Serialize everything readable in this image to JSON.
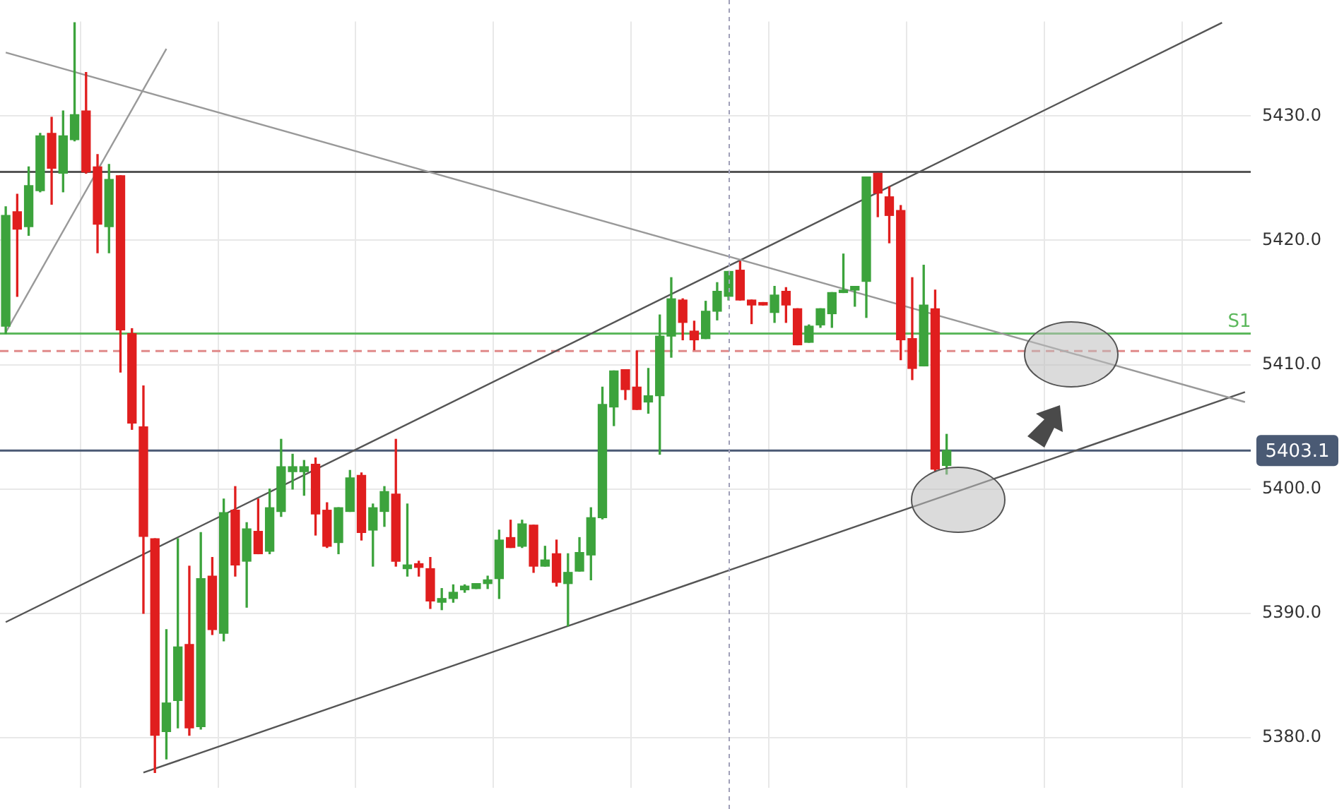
{
  "chart_data": {
    "type": "candlestick",
    "categories": [
      null,
      null,
      null,
      null,
      null,
      null,
      null,
      null,
      null,
      null,
      null,
      null,
      null,
      null,
      null,
      null,
      null,
      null,
      null,
      null,
      null,
      null,
      null,
      null,
      null,
      null,
      null,
      null,
      null,
      null,
      null,
      null,
      null,
      null,
      null,
      null,
      null,
      null,
      null,
      null,
      null,
      null,
      null,
      null,
      null,
      null,
      null,
      null,
      null,
      null,
      null,
      null,
      null,
      null,
      null,
      null,
      null,
      null,
      null,
      null,
      null,
      null,
      null,
      null,
      null,
      null,
      null,
      null,
      null,
      null,
      null,
      null,
      null,
      null,
      null,
      null,
      null,
      null,
      null,
      null,
      null,
      null,
      null,
      null,
      null,
      null,
      null,
      null,
      null,
      null,
      null,
      null,
      null,
      null,
      null,
      null,
      null,
      null,
      null,
      null,
      null,
      null,
      null,
      null,
      null,
      null,
      null,
      null,
      null
    ],
    "ohlc": [
      [
        5413.1,
        5422.7,
        5412.5,
        5422.0
      ],
      [
        5422.3,
        5423.7,
        5415.5,
        5420.9
      ],
      [
        5421.1,
        5425.9,
        5420.4,
        5424.4
      ],
      [
        5424.0,
        5428.6,
        5423.9,
        5428.4
      ],
      [
        5428.6,
        5429.9,
        5422.9,
        5425.8
      ],
      [
        5425.4,
        5430.4,
        5423.9,
        5428.4
      ],
      [
        5428.1,
        5437.5,
        5428.0,
        5430.1
      ],
      [
        5430.4,
        5433.5,
        5425.4,
        5425.5
      ],
      [
        5425.9,
        5426.9,
        5419.0,
        5421.3
      ],
      [
        5421.1,
        5426.1,
        5419.0,
        5424.9
      ],
      [
        5425.2,
        5425.2,
        5409.4,
        5412.8
      ],
      [
        5412.5,
        5412.9,
        5404.8,
        5405.3
      ],
      [
        5405.0,
        5408.3,
        5390.0,
        5396.2
      ],
      [
        5396.0,
        5396.0,
        5377.2,
        5380.2
      ],
      [
        5380.5,
        5388.7,
        5378.3,
        5382.8
      ],
      [
        5383.0,
        5396.0,
        5380.8,
        5387.3
      ],
      [
        5387.5,
        5393.8,
        5380.2,
        5380.8
      ],
      [
        5380.9,
        5396.5,
        5380.7,
        5392.8
      ],
      [
        5393.0,
        5394.5,
        5388.3,
        5388.7
      ],
      [
        5388.4,
        5399.2,
        5387.8,
        5398.1
      ],
      [
        5398.3,
        5400.2,
        5393.0,
        5393.9
      ],
      [
        5394.2,
        5397.3,
        5390.5,
        5396.8
      ],
      [
        5396.6,
        5399.2,
        5394.8,
        5394.8
      ],
      [
        5395.0,
        5400.0,
        5394.8,
        5398.5
      ],
      [
        5398.2,
        5404.0,
        5397.8,
        5401.8
      ],
      [
        5401.4,
        5402.8,
        5400.0,
        5401.8
      ],
      [
        5401.4,
        5402.3,
        5399.5,
        5401.8
      ],
      [
        5402.0,
        5402.5,
        5396.3,
        5398.0
      ],
      [
        5398.3,
        5398.9,
        5395.3,
        5395.4
      ],
      [
        5395.7,
        5398.5,
        5394.8,
        5398.5
      ],
      [
        5398.2,
        5401.5,
        5398.2,
        5400.9
      ],
      [
        5401.1,
        5401.3,
        5395.9,
        5396.5
      ],
      [
        5396.7,
        5398.8,
        5393.8,
        5398.5
      ],
      [
        5398.2,
        5400.2,
        5397.0,
        5399.8
      ],
      [
        5399.6,
        5404.0,
        5393.8,
        5394.2
      ],
      [
        5393.6,
        5398.8,
        5393.0,
        5393.9
      ],
      [
        5394.0,
        5394.2,
        5393.0,
        5393.7
      ],
      [
        5393.6,
        5394.5,
        5390.4,
        5391.0
      ],
      [
        5390.9,
        5392.0,
        5390.3,
        5391.2
      ],
      [
        5391.2,
        5392.3,
        5390.9,
        5391.7
      ],
      [
        5391.9,
        5392.3,
        5391.7,
        5392.2
      ],
      [
        5392.0,
        5392.4,
        5392.0,
        5392.4
      ],
      [
        5392.4,
        5393.0,
        5392.0,
        5392.7
      ],
      [
        5392.8,
        5396.7,
        5391.2,
        5395.9
      ],
      [
        5396.1,
        5397.5,
        5395.3,
        5395.3
      ],
      [
        5395.4,
        5397.5,
        5395.3,
        5397.2
      ],
      [
        5397.1,
        5397.1,
        5393.3,
        5393.8
      ],
      [
        5393.8,
        5395.4,
        5393.8,
        5394.3
      ],
      [
        5394.8,
        5395.9,
        5392.2,
        5392.5
      ],
      [
        5392.4,
        5394.8,
        5389.0,
        5393.3
      ],
      [
        5393.4,
        5396.1,
        5393.4,
        5394.9
      ],
      [
        5394.7,
        5398.5,
        5392.7,
        5397.7
      ],
      [
        5397.7,
        5408.2,
        5397.6,
        5406.8
      ],
      [
        5406.6,
        5409.5,
        5405.1,
        5409.5
      ],
      [
        5409.6,
        5409.6,
        5407.2,
        5408.0
      ],
      [
        5408.2,
        5411.1,
        5406.4,
        5406.4
      ],
      [
        5407.0,
        5409.7,
        5406.1,
        5407.5
      ],
      [
        5407.5,
        5414.0,
        5402.8,
        5412.3
      ],
      [
        5412.3,
        5417.0,
        5410.6,
        5415.3
      ],
      [
        5415.2,
        5415.3,
        5412.0,
        5413.4
      ],
      [
        5412.7,
        5413.5,
        5411.2,
        5412.0
      ],
      [
        5412.1,
        5415.1,
        5412.1,
        5414.3
      ],
      [
        5414.3,
        5416.6,
        5413.6,
        5415.9
      ],
      [
        5415.5,
        5417.5,
        5415.2,
        5417.5
      ],
      [
        5417.6,
        5418.3,
        5415.2,
        5415.2
      ],
      [
        5415.2,
        5415.2,
        5413.3,
        5414.8
      ],
      [
        5415.0,
        5415.0,
        5414.8,
        5414.8
      ],
      [
        5414.2,
        5416.3,
        5413.4,
        5415.6
      ],
      [
        5415.9,
        5416.2,
        5413.4,
        5414.8
      ],
      [
        5414.5,
        5414.5,
        5411.6,
        5411.6
      ],
      [
        5411.8,
        5413.2,
        5411.8,
        5413.1
      ],
      [
        5413.2,
        5414.5,
        5413.0,
        5414.5
      ],
      [
        5414.1,
        5415.8,
        5413.0,
        5415.8
      ],
      [
        5415.8,
        5418.9,
        5415.8,
        5416.0
      ],
      [
        5416.0,
        5416.3,
        5414.7,
        5416.3
      ],
      [
        5416.7,
        5425.1,
        5413.8,
        5425.1
      ],
      [
        5425.4,
        5425.4,
        5421.9,
        5423.8
      ],
      [
        5423.5,
        5424.3,
        5419.8,
        5422.0
      ],
      [
        5422.4,
        5422.8,
        5410.4,
        5412.0
      ],
      [
        5412.1,
        5417.0,
        5408.8,
        5409.7
      ],
      [
        5409.9,
        5418.0,
        5409.9,
        5414.8
      ],
      [
        5414.5,
        5416.0,
        5401.4,
        5401.6
      ],
      [
        5401.9,
        5404.4,
        5401.2,
        5403.1
      ],
      null,
      null,
      null,
      null,
      null,
      null,
      null,
      null,
      null,
      null,
      null,
      null,
      null,
      null,
      null,
      null,
      null,
      null,
      null,
      null,
      null,
      null,
      null,
      null,
      null,
      null
    ],
    "colors": [
      "#3ca33c",
      "#e01e1e",
      "#3ca33c",
      "#3ca33c",
      "#e01e1e",
      "#3ca33c",
      "#3ca33c",
      "#e01e1e",
      "#e01e1e",
      "#3ca33c",
      "#e01e1e",
      "#e01e1e",
      "#e01e1e",
      "#e01e1e",
      "#3ca33c",
      "#3ca33c",
      "#e01e1e",
      "#3ca33c",
      "#e01e1e",
      "#3ca33c",
      "#e01e1e",
      "#3ca33c",
      "#e01e1e",
      "#3ca33c",
      "#3ca33c",
      "#3ca33c",
      "#3ca33c",
      "#e01e1e",
      "#e01e1e",
      "#3ca33c",
      "#3ca33c",
      "#e01e1e",
      "#3ca33c",
      "#3ca33c",
      "#e01e1e",
      "#3ca33c",
      "#e01e1e",
      "#e01e1e",
      "#3ca33c",
      "#3ca33c",
      "#3ca33c",
      "#3ca33c",
      "#3ca33c",
      "#3ca33c",
      "#e01e1e",
      "#3ca33c",
      "#e01e1e",
      "#3ca33c",
      "#e01e1e",
      "#3ca33c",
      "#3ca33c",
      "#3ca33c",
      "#3ca33c",
      "#3ca33c",
      "#e01e1e",
      "#e01e1e",
      "#3ca33c",
      "#3ca33c",
      "#3ca33c",
      "#e01e1e",
      "#e01e1e",
      "#3ca33c",
      "#3ca33c",
      "#3ca33c",
      "#e01e1e",
      "#e01e1e",
      "#e01e1e",
      "#3ca33c",
      "#e01e1e",
      "#e01e1e",
      "#3ca33c",
      "#3ca33c",
      "#3ca33c",
      "#3ca33c",
      "#3ca33c",
      "#3ca33c",
      "#e01e1e",
      "#e01e1e",
      "#e01e1e",
      "#e01e1e",
      "#3ca33c",
      "#e01e1e",
      "#3ca33c",
      null,
      null,
      null,
      null,
      null,
      null,
      null,
      null,
      null,
      null,
      null,
      null,
      null,
      null,
      null,
      null,
      null,
      null,
      null,
      null,
      null,
      null,
      null,
      null,
      null,
      null
    ],
    "ylim": [
      5376.0,
      5437.6
    ],
    "yticks": [
      {
        "value": 5380,
        "label": "5380.0"
      },
      {
        "value": 5390,
        "label": "5390.0"
      },
      {
        "value": 5400,
        "label": "5400.0"
      },
      {
        "value": 5410,
        "label": "5410.0"
      },
      {
        "value": 5420,
        "label": "5420.0"
      },
      {
        "value": 5430,
        "label": "5430.0"
      }
    ],
    "ref_lines": [
      {
        "axis": "y",
        "value": 5425.5,
        "color": "#555555"
      },
      {
        "axis": "y",
        "value": 5412.5,
        "label": "S1",
        "color": "#5cb85c"
      },
      {
        "axis": "y",
        "value": 5411.1,
        "color": "#e08a8a",
        "line_style": "dashed"
      },
      {
        "axis": "y",
        "value": 5403.1,
        "label": "5403.1",
        "color": "#4a5a74"
      }
    ],
    "series": [
      {
        "type": "line",
        "color": "#999999",
        "values": [
          5412.6,
          null,
          null,
          null,
          null,
          null,
          null,
          null,
          null,
          null,
          null,
          null,
          null,
          null,
          5435.4,
          null,
          null,
          null,
          null,
          null,
          null,
          null,
          null,
          null,
          null,
          null,
          null,
          null,
          null,
          null,
          null,
          null,
          null,
          null,
          null,
          null,
          null,
          null,
          null,
          null,
          null,
          null,
          null,
          null,
          null,
          null,
          null,
          null,
          null,
          null,
          null,
          null,
          null,
          null,
          null,
          null,
          null,
          null,
          null,
          null,
          null,
          null,
          null,
          null,
          null,
          null,
          null,
          null,
          null,
          null,
          null,
          null,
          null,
          null,
          null,
          null,
          null,
          null,
          null,
          null,
          null,
          null,
          null,
          null,
          null,
          null,
          null,
          null,
          null,
          null,
          null,
          null,
          null,
          null,
          null,
          null,
          null,
          null,
          null,
          null,
          null,
          null,
          null,
          null,
          null,
          null,
          null,
          null,
          null
        ]
      },
      {
        "type": "line",
        "color": "#999999",
        "values": [
          5435.1,
          null,
          null,
          null,
          null,
          null,
          null,
          null,
          null,
          null,
          null,
          null,
          null,
          null,
          null,
          null,
          null,
          null,
          null,
          null,
          null,
          null,
          null,
          null,
          null,
          null,
          null,
          null,
          null,
          null,
          null,
          null,
          null,
          null,
          null,
          null,
          null,
          null,
          null,
          null,
          null,
          null,
          null,
          null,
          null,
          null,
          null,
          null,
          null,
          null,
          null,
          null,
          null,
          null,
          null,
          null,
          null,
          null,
          null,
          null,
          null,
          null,
          null,
          null,
          null,
          null,
          null,
          null,
          null,
          null,
          null,
          null,
          null,
          null,
          null,
          null,
          null,
          null,
          null,
          null,
          null,
          null,
          null,
          null,
          null,
          null,
          null,
          null,
          null,
          null,
          null,
          null,
          null,
          null,
          null,
          null,
          null,
          null,
          null,
          null,
          null,
          null,
          null,
          null,
          null,
          null,
          null,
          null,
          5407.0
        ]
      },
      {
        "type": "line",
        "color": "#555555",
        "values": [
          5389.3,
          null,
          null,
          null,
          null,
          null,
          null,
          null,
          null,
          null,
          null,
          null,
          null,
          null,
          null,
          null,
          null,
          null,
          null,
          null,
          null,
          null,
          null,
          null,
          null,
          null,
          null,
          null,
          null,
          null,
          null,
          null,
          null,
          null,
          null,
          null,
          null,
          null,
          null,
          null,
          null,
          null,
          null,
          null,
          null,
          null,
          null,
          null,
          null,
          null,
          null,
          null,
          null,
          null,
          null,
          null,
          null,
          null,
          null,
          null,
          null,
          null,
          null,
          null,
          null,
          null,
          null,
          null,
          null,
          null,
          null,
          null,
          null,
          null,
          null,
          null,
          null,
          null,
          null,
          null,
          null,
          null,
          null,
          null,
          null,
          null,
          null,
          null,
          null,
          null,
          null,
          null,
          null,
          null,
          null,
          null,
          null,
          null,
          null,
          null,
          null,
          null,
          null,
          null,
          null,
          null,
          5437.5,
          null,
          null
        ]
      },
      {
        "type": "line",
        "color": "#555555",
        "values": [
          null,
          null,
          null,
          null,
          null,
          null,
          null,
          null,
          null,
          null,
          null,
          null,
          5377.2,
          null,
          null,
          null,
          null,
          null,
          null,
          null,
          null,
          null,
          null,
          null,
          null,
          null,
          null,
          null,
          null,
          null,
          null,
          null,
          null,
          null,
          null,
          null,
          null,
          null,
          null,
          null,
          null,
          null,
          null,
          null,
          null,
          null,
          null,
          null,
          null,
          null,
          null,
          null,
          null,
          null,
          null,
          null,
          null,
          null,
          null,
          null,
          null,
          null,
          null,
          null,
          null,
          null,
          null,
          null,
          null,
          null,
          null,
          null,
          null,
          null,
          null,
          null,
          null,
          null,
          null,
          null,
          null,
          null,
          null,
          null,
          null,
          null,
          null,
          null,
          null,
          null,
          null,
          null,
          null,
          null,
          null,
          null,
          null,
          null,
          null,
          null,
          null,
          null,
          null,
          null,
          null,
          null,
          null,
          null,
          5407.8
        ]
      }
    ],
    "grid": true,
    "tick_labels": "y"
  }
}
